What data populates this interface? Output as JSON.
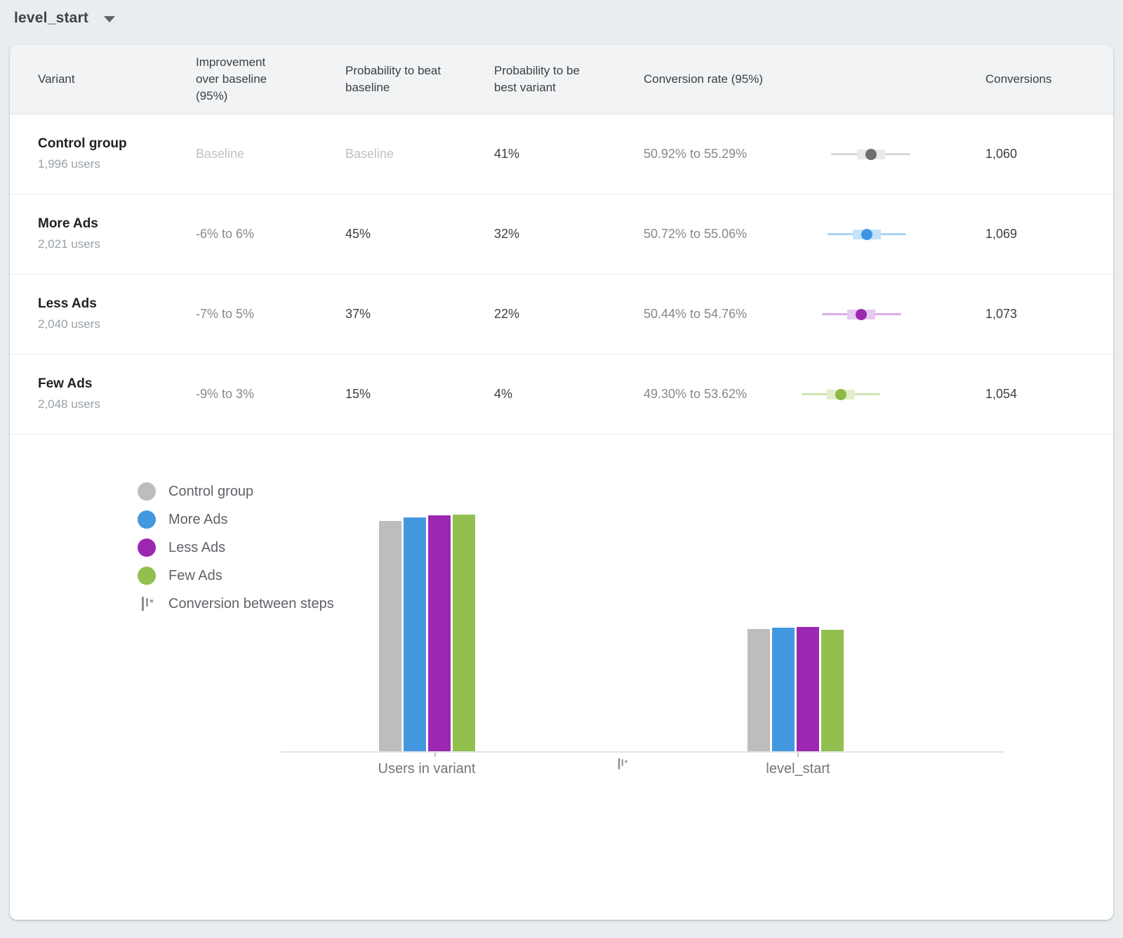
{
  "metric_selector": {
    "label": "level_start"
  },
  "colors": {
    "control": {
      "main": "#bdbdbd",
      "dot": "#6e6e6e",
      "line": "#d9d9d9",
      "box": "#e9e9e9"
    },
    "more_ads": {
      "main": "#4398e0",
      "dot": "#3d96e3",
      "line": "#a9d4f4",
      "box": "#c4e2f8"
    },
    "less_ads": {
      "main": "#9c27b0",
      "dot": "#9c27b0",
      "line": "#d9aee6",
      "box": "#e6c9ef"
    },
    "few_ads": {
      "main": "#92bf4e",
      "dot": "#8cbb47",
      "line": "#d0e5b3",
      "box": "#e1eecb"
    }
  },
  "table": {
    "columns": {
      "variant": "Variant",
      "improvement": "Improvement over baseline (95%)",
      "prob_beat": "Probability to beat baseline",
      "prob_best": "Probability to be best variant",
      "conv_rate": "Conversion rate (95%)",
      "conversions": "Conversions"
    },
    "rows": [
      {
        "variant": "Control group",
        "users": "1,996 users",
        "improvement": "Baseline",
        "prob_beat": "Baseline",
        "prob_best": "41%",
        "conv_rate_label": "50.92% to 55.29%",
        "conv_low": 50.92,
        "conv_high": 55.29,
        "conversions": "1,060",
        "series_key": "control",
        "is_baseline": true
      },
      {
        "variant": "More Ads",
        "users": "2,021 users",
        "improvement": "-6% to 6%",
        "prob_beat": "45%",
        "prob_best": "32%",
        "conv_rate_label": "50.72% to 55.06%",
        "conv_low": 50.72,
        "conv_high": 55.06,
        "conversions": "1,069",
        "series_key": "more_ads",
        "is_baseline": false
      },
      {
        "variant": "Less Ads",
        "users": "2,040 users",
        "improvement": "-7% to 5%",
        "prob_beat": "37%",
        "prob_best": "22%",
        "conv_rate_label": "50.44% to 54.76%",
        "conv_low": 50.44,
        "conv_high": 54.76,
        "conversions": "1,073",
        "series_key": "less_ads",
        "is_baseline": false
      },
      {
        "variant": "Few Ads",
        "users": "2,048 users",
        "improvement": "-9% to 3%",
        "prob_beat": "15%",
        "prob_best": "4%",
        "conv_rate_label": "49.30% to 53.62%",
        "conv_low": 49.3,
        "conv_high": 53.62,
        "conversions": "1,054",
        "series_key": "few_ads",
        "is_baseline": false
      }
    ]
  },
  "chart_data": {
    "type": "bar",
    "categories": [
      "Users in variant",
      "level_start"
    ],
    "series": [
      {
        "name": "Control group",
        "color_key": "control",
        "values": [
          1996,
          1060
        ]
      },
      {
        "name": "More Ads",
        "color_key": "more_ads",
        "values": [
          2021,
          1069
        ]
      },
      {
        "name": "Less Ads",
        "color_key": "less_ads",
        "values": [
          2040,
          1073
        ]
      },
      {
        "name": "Few Ads",
        "color_key": "few_ads",
        "values": [
          2048,
          1054
        ]
      }
    ],
    "ylim": [
      0,
      2048
    ],
    "grid": false,
    "legend_position": "left",
    "legend_extra": "Conversion between steps"
  }
}
